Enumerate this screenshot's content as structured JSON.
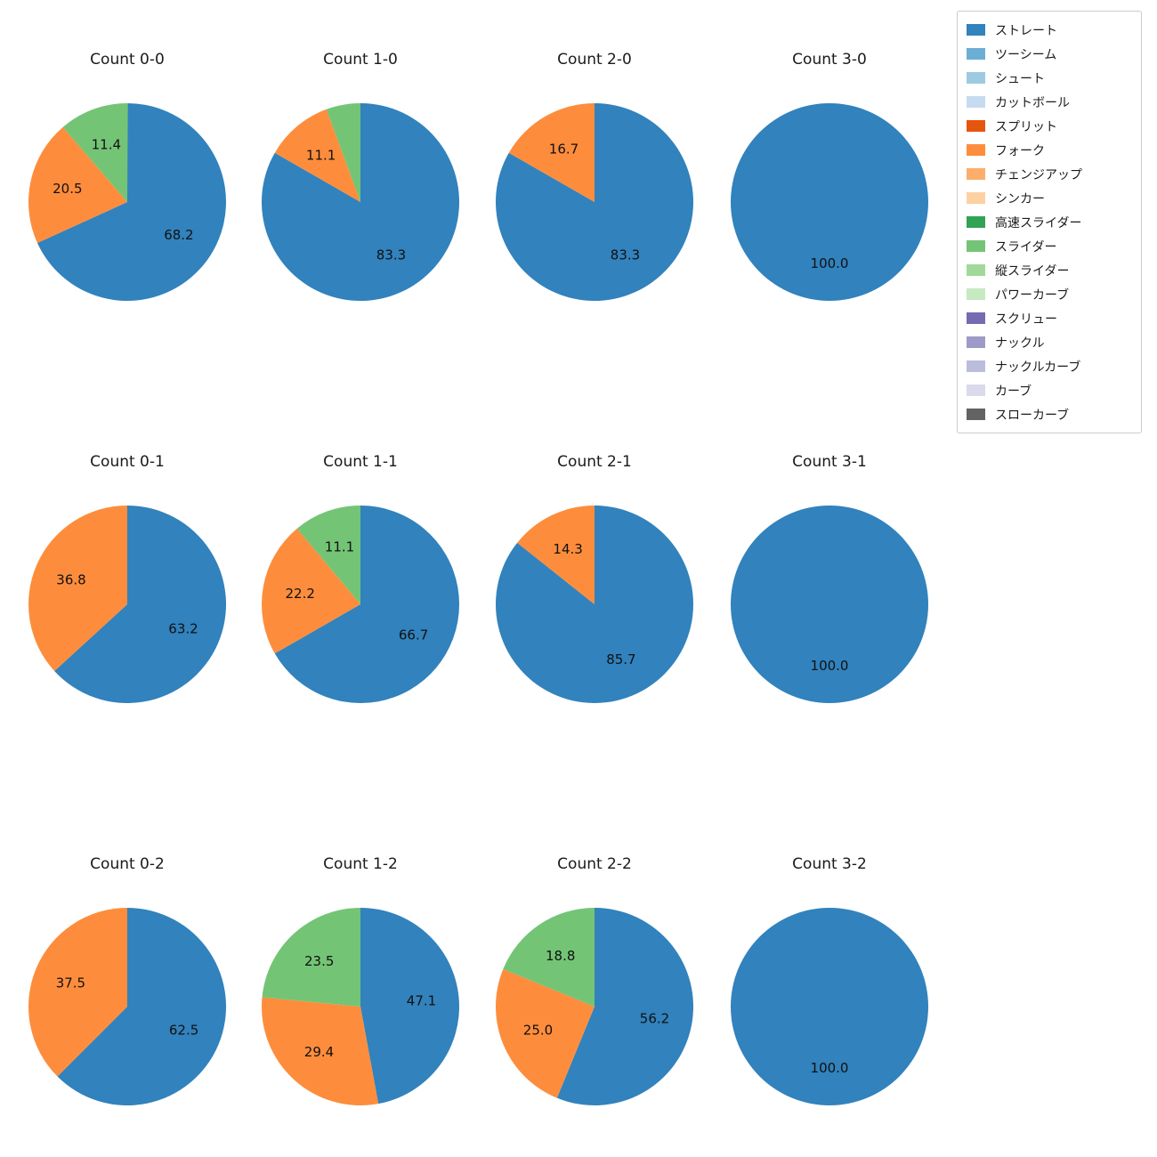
{
  "figure": {
    "background": "#ffffff",
    "grid": {
      "rows": 3,
      "cols": 4
    }
  },
  "colors": {
    "ストレート": "#3182bd",
    "ツーシーム": "#6baed6",
    "シュート": "#9ecae1",
    "カットボール": "#c6dbef",
    "スプリット": "#e6550d",
    "フォーク": "#fd8d3c",
    "チェンジアップ": "#fdae6b",
    "シンカー": "#fdd0a2",
    "高速スライダー": "#31a354",
    "スライダー": "#74c476",
    "縦スライダー": "#a1d99b",
    "パワーカーブ": "#c7e9c0",
    "スクリュー": "#756bb1",
    "ナックル": "#9e9ac8",
    "ナックルカーブ": "#bcbddc",
    "カーブ": "#dadaeb",
    "スローカーブ": "#636363"
  },
  "legend": {
    "position": "top-right",
    "items": [
      "ストレート",
      "ツーシーム",
      "シュート",
      "カットボール",
      "スプリット",
      "フォーク",
      "チェンジアップ",
      "シンカー",
      "高速スライダー",
      "スライダー",
      "縦スライダー",
      "パワーカーブ",
      "スクリュー",
      "ナックル",
      "ナックルカーブ",
      "カーブ",
      "スローカーブ"
    ]
  },
  "chart_data": [
    {
      "type": "pie",
      "title": "Count 0-0",
      "start_angle": 90,
      "direction": "clockwise",
      "slices": [
        {
          "name": "ストレート",
          "value": 68.2,
          "label": "68.2"
        },
        {
          "name": "フォーク",
          "value": 20.5,
          "label": "20.5"
        },
        {
          "name": "スライダー",
          "value": 11.4,
          "label": "11.4"
        }
      ]
    },
    {
      "type": "pie",
      "title": "Count 1-0",
      "start_angle": 90,
      "direction": "clockwise",
      "slices": [
        {
          "name": "ストレート",
          "value": 83.3,
          "label": "83.3"
        },
        {
          "name": "フォーク",
          "value": 11.1,
          "label": "11.1"
        },
        {
          "name": "スライダー",
          "value": 5.6,
          "label": ""
        }
      ]
    },
    {
      "type": "pie",
      "title": "Count 2-0",
      "start_angle": 90,
      "direction": "clockwise",
      "slices": [
        {
          "name": "ストレート",
          "value": 83.3,
          "label": "83.3"
        },
        {
          "name": "フォーク",
          "value": 16.7,
          "label": "16.7"
        }
      ]
    },
    {
      "type": "pie",
      "title": "Count 3-0",
      "start_angle": 90,
      "direction": "clockwise",
      "slices": [
        {
          "name": "ストレート",
          "value": 100.0,
          "label": "100.0"
        }
      ]
    },
    {
      "type": "pie",
      "title": "Count 0-1",
      "start_angle": 90,
      "direction": "clockwise",
      "slices": [
        {
          "name": "ストレート",
          "value": 63.2,
          "label": "63.2"
        },
        {
          "name": "フォーク",
          "value": 36.8,
          "label": "36.8"
        }
      ]
    },
    {
      "type": "pie",
      "title": "Count 1-1",
      "start_angle": 90,
      "direction": "clockwise",
      "slices": [
        {
          "name": "ストレート",
          "value": 66.7,
          "label": "66.7"
        },
        {
          "name": "フォーク",
          "value": 22.2,
          "label": "22.2"
        },
        {
          "name": "スライダー",
          "value": 11.1,
          "label": "11.1"
        }
      ]
    },
    {
      "type": "pie",
      "title": "Count 2-1",
      "start_angle": 90,
      "direction": "clockwise",
      "slices": [
        {
          "name": "ストレート",
          "value": 85.7,
          "label": "85.7"
        },
        {
          "name": "フォーク",
          "value": 14.3,
          "label": "14.3"
        }
      ]
    },
    {
      "type": "pie",
      "title": "Count 3-1",
      "start_angle": 90,
      "direction": "clockwise",
      "slices": [
        {
          "name": "ストレート",
          "value": 100.0,
          "label": "100.0"
        }
      ]
    },
    {
      "type": "pie",
      "title": "Count 0-2",
      "start_angle": 90,
      "direction": "clockwise",
      "slices": [
        {
          "name": "ストレート",
          "value": 62.5,
          "label": "62.5"
        },
        {
          "name": "フォーク",
          "value": 37.5,
          "label": "37.5"
        }
      ]
    },
    {
      "type": "pie",
      "title": "Count 1-2",
      "start_angle": 90,
      "direction": "clockwise",
      "slices": [
        {
          "name": "ストレート",
          "value": 47.1,
          "label": "47.1"
        },
        {
          "name": "フォーク",
          "value": 29.4,
          "label": "29.4"
        },
        {
          "name": "スライダー",
          "value": 23.5,
          "label": "23.5"
        }
      ]
    },
    {
      "type": "pie",
      "title": "Count 2-2",
      "start_angle": 90,
      "direction": "clockwise",
      "slices": [
        {
          "name": "ストレート",
          "value": 56.2,
          "label": "56.2"
        },
        {
          "name": "フォーク",
          "value": 25.0,
          "label": "25.0"
        },
        {
          "name": "スライダー",
          "value": 18.8,
          "label": "18.8"
        }
      ]
    },
    {
      "type": "pie",
      "title": "Count 3-2",
      "start_angle": 90,
      "direction": "clockwise",
      "slices": [
        {
          "name": "ストレート",
          "value": 100.0,
          "label": "100.0"
        }
      ]
    }
  ]
}
